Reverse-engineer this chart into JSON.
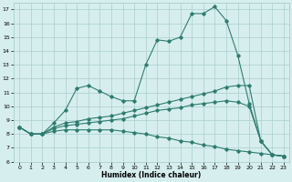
{
  "title": "",
  "xlabel": "Humidex (Indice chaleur)",
  "ylabel": "",
  "x_values": [
    0,
    1,
    2,
    3,
    4,
    5,
    6,
    7,
    8,
    9,
    10,
    11,
    12,
    13,
    14,
    15,
    16,
    17,
    18,
    19,
    20,
    21,
    22,
    23
  ],
  "line1": [
    8.5,
    8.0,
    8.0,
    8.8,
    9.7,
    11.3,
    11.5,
    11.1,
    10.7,
    10.4,
    10.4,
    13.0,
    14.8,
    14.7,
    15.0,
    16.7,
    16.7,
    17.2,
    16.2,
    13.7,
    10.2,
    7.5,
    6.5,
    6.4
  ],
  "line2": [
    8.5,
    8.0,
    8.0,
    8.5,
    8.8,
    8.9,
    9.1,
    9.2,
    9.3,
    9.5,
    9.7,
    9.9,
    10.1,
    10.3,
    10.5,
    10.7,
    10.9,
    11.1,
    11.4,
    11.5,
    11.5,
    7.5,
    6.5,
    6.4
  ],
  "line3": [
    8.5,
    8.0,
    8.0,
    8.4,
    8.6,
    8.7,
    8.8,
    8.9,
    9.0,
    9.1,
    9.3,
    9.5,
    9.7,
    9.8,
    9.9,
    10.1,
    10.2,
    10.3,
    10.4,
    10.3,
    10.0,
    7.5,
    6.5,
    6.4
  ],
  "line4": [
    8.5,
    8.0,
    8.0,
    8.2,
    8.3,
    8.3,
    8.3,
    8.3,
    8.3,
    8.2,
    8.1,
    8.0,
    7.8,
    7.7,
    7.5,
    7.4,
    7.2,
    7.1,
    6.9,
    6.8,
    6.7,
    6.6,
    6.5,
    6.4
  ],
  "line_color": "#2e7d70",
  "bg_color": "#d7eeee",
  "grid_color": "#aacece",
  "ylim": [
    6,
    17.5
  ],
  "xlim": [
    -0.5,
    23.5
  ],
  "yticks": [
    6,
    7,
    8,
    9,
    10,
    11,
    12,
    13,
    14,
    15,
    16,
    17
  ],
  "xticks": [
    0,
    1,
    2,
    3,
    4,
    5,
    6,
    7,
    8,
    9,
    10,
    11,
    12,
    13,
    14,
    15,
    16,
    17,
    18,
    19,
    20,
    21,
    22,
    23
  ],
  "tick_fontsize": 4.5,
  "xlabel_fontsize": 5.5
}
